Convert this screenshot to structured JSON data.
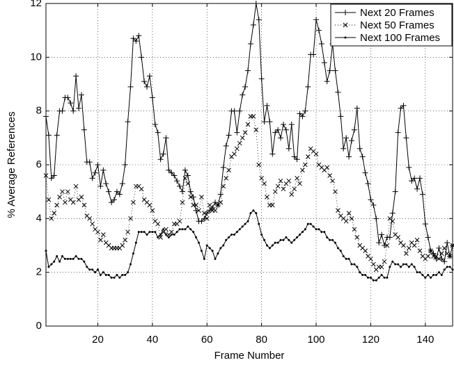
{
  "chart_data": {
    "type": "line",
    "xlabel": "Frame Number",
    "ylabel": "% Average References",
    "x": [
      1,
      2,
      3,
      4,
      5,
      6,
      7,
      8,
      9,
      10,
      11,
      12,
      13,
      14,
      15,
      16,
      17,
      18,
      19,
      20,
      21,
      22,
      23,
      24,
      25,
      26,
      27,
      28,
      29,
      30,
      31,
      32,
      33,
      34,
      35,
      36,
      37,
      38,
      39,
      40,
      41,
      42,
      43,
      44,
      45,
      46,
      47,
      48,
      49,
      50,
      51,
      52,
      53,
      54,
      55,
      56,
      57,
      58,
      59,
      60,
      61,
      62,
      63,
      64,
      65,
      66,
      67,
      68,
      69,
      70,
      71,
      72,
      73,
      74,
      75,
      76,
      77,
      78,
      79,
      80,
      81,
      82,
      83,
      84,
      85,
      86,
      87,
      88,
      89,
      90,
      91,
      92,
      93,
      94,
      95,
      96,
      97,
      98,
      99,
      100,
      101,
      102,
      103,
      104,
      105,
      106,
      107,
      108,
      109,
      110,
      111,
      112,
      113,
      114,
      115,
      116,
      117,
      118,
      119,
      120,
      121,
      122,
      123,
      124,
      125,
      126,
      127,
      128,
      129,
      130,
      131,
      132,
      133,
      134,
      135,
      136,
      137,
      138,
      139,
      140,
      141,
      142,
      143,
      144,
      145,
      146,
      147,
      148,
      149,
      150
    ],
    "series": [
      {
        "name": "Next 20 Frames",
        "color": "#000000",
        "marker": "plus",
        "linestyle": "solid",
        "values": [
          7.8,
          7.1,
          5.5,
          5.6,
          7.1,
          8.0,
          8.0,
          8.5,
          8.5,
          8.3,
          8.0,
          9.3,
          8.1,
          8.6,
          7.3,
          6.1,
          6.1,
          5.5,
          5.7,
          6.0,
          5.2,
          5.8,
          5.3,
          5.0,
          4.6,
          4.7,
          5.0,
          4.9,
          5.3,
          6.0,
          7.6,
          8.9,
          10.7,
          10.6,
          10.8,
          10.0,
          9.1,
          8.9,
          9.3,
          8.5,
          7.5,
          7.2,
          6.2,
          6.4,
          7.0,
          5.8,
          5.7,
          5.6,
          5.4,
          5.2,
          5.0,
          5.8,
          5.6,
          5.0,
          4.8,
          4.3,
          3.9,
          3.9,
          4.0,
          4.2,
          4.3,
          4.4,
          4.6,
          4.5,
          4.9,
          5.9,
          6.7,
          7.1,
          8.0,
          8.0,
          7.2,
          8.0,
          8.6,
          8.9,
          9.5,
          10.5,
          11.2,
          12.0,
          11.4,
          9.2,
          7.6,
          8.2,
          7.6,
          6.4,
          7.2,
          7.3,
          7.0,
          7.5,
          7.3,
          6.6,
          7.5,
          6.3,
          6.2,
          7.9,
          7.8,
          8.0,
          8.9,
          10.1,
          10.1,
          11.4,
          11.0,
          10.5,
          9.8,
          9.1,
          9.5,
          10.5,
          9.5,
          8.7,
          7.8,
          6.6,
          7.0,
          6.3,
          6.9,
          7.3,
          8.1,
          6.6,
          6.3,
          5.7,
          5.3,
          4.7,
          4.5,
          4.0,
          3.1,
          3.4,
          3.0,
          3.3,
          3.3,
          4.2,
          5.0,
          7.2,
          8.1,
          8.2,
          7.0,
          5.9,
          5.4,
          5.5,
          5.1,
          5.5,
          4.9,
          3.8,
          3.3,
          2.8,
          2.7,
          2.5,
          2.9,
          2.5,
          2.4,
          3.1,
          2.6,
          3.0
        ]
      },
      {
        "name": "Next 50 Frames",
        "color": "#000000",
        "marker": "cross",
        "linestyle": "dotted",
        "values": [
          5.6,
          4.7,
          4.0,
          4.2,
          4.5,
          4.8,
          5.0,
          4.6,
          5.0,
          4.7,
          4.6,
          5.2,
          4.7,
          4.8,
          4.5,
          4.1,
          4.0,
          3.8,
          3.6,
          3.5,
          3.2,
          3.4,
          3.1,
          3.0,
          2.9,
          2.9,
          2.9,
          2.9,
          3.0,
          3.2,
          3.5,
          4.0,
          4.6,
          5.2,
          5.2,
          5.1,
          4.7,
          4.6,
          4.5,
          4.3,
          3.9,
          3.8,
          3.3,
          3.5,
          3.6,
          3.4,
          3.5,
          3.8,
          3.8,
          3.9,
          4.6,
          5.5,
          5.3,
          4.8,
          4.5,
          4.5,
          4.3,
          4.8,
          4.2,
          4.0,
          4.5,
          4.3,
          4.3,
          4.5,
          4.6,
          5.2,
          5.5,
          5.8,
          6.3,
          6.4,
          6.6,
          6.8,
          7.0,
          7.2,
          7.5,
          7.8,
          7.8,
          7.3,
          6.0,
          5.5,
          5.3,
          4.8,
          4.5,
          4.5,
          5.0,
          5.2,
          5.4,
          5.1,
          5.3,
          5.4,
          4.9,
          5.1,
          5.5,
          5.3,
          5.8,
          6.0,
          6.3,
          6.6,
          6.5,
          6.4,
          6.0,
          5.9,
          5.8,
          5.9,
          5.6,
          5.4,
          5.0,
          4.3,
          4.1,
          4.0,
          3.9,
          4.2,
          4.0,
          3.6,
          3.3,
          3.0,
          2.9,
          2.8,
          2.6,
          2.5,
          2.3,
          2.1,
          2.2,
          2.2,
          2.4,
          3.0,
          4.0,
          3.9,
          3.4,
          3.3,
          3.1,
          3.0,
          2.7,
          2.9,
          3.1,
          3.0,
          3.2,
          2.8,
          2.6,
          2.5,
          2.6,
          2.8,
          2.6,
          2.6,
          2.5,
          2.7,
          2.9,
          2.7,
          2.6,
          3.0
        ]
      },
      {
        "name": "Next 100 Frames",
        "color": "#000000",
        "marker": "dot",
        "linestyle": "solid",
        "values": [
          2.8,
          2.2,
          2.3,
          2.4,
          2.6,
          2.4,
          2.6,
          2.5,
          2.5,
          2.5,
          2.5,
          2.6,
          2.5,
          2.5,
          2.4,
          2.2,
          2.1,
          2.1,
          2.0,
          2.1,
          1.9,
          2.0,
          1.9,
          1.9,
          1.8,
          1.8,
          1.9,
          1.8,
          1.9,
          1.9,
          2.0,
          2.3,
          2.7,
          3.1,
          3.5,
          3.5,
          3.5,
          3.4,
          3.5,
          3.5,
          3.5,
          3.3,
          3.4,
          3.6,
          3.4,
          3.3,
          3.4,
          3.4,
          3.5,
          3.6,
          3.6,
          3.6,
          3.7,
          3.6,
          3.5,
          3.3,
          3.1,
          2.8,
          2.5,
          3.0,
          2.9,
          2.8,
          2.5,
          2.7,
          2.9,
          3.0,
          3.2,
          3.3,
          3.4,
          3.4,
          3.5,
          3.6,
          3.7,
          3.8,
          3.9,
          4.2,
          4.3,
          4.2,
          3.8,
          3.4,
          3.2,
          3.0,
          2.9,
          3.0,
          3.1,
          3.1,
          3.2,
          3.2,
          3.3,
          3.2,
          3.1,
          3.2,
          3.3,
          3.4,
          3.5,
          3.6,
          3.8,
          3.8,
          3.7,
          3.6,
          3.6,
          3.5,
          3.5,
          3.3,
          3.2,
          3.2,
          3.1,
          2.9,
          2.8,
          2.6,
          2.5,
          2.5,
          2.3,
          2.3,
          2.2,
          2.0,
          1.9,
          1.9,
          1.8,
          1.8,
          1.7,
          1.7,
          1.8,
          1.9,
          1.8,
          1.8,
          2.2,
          2.4,
          2.3,
          2.3,
          2.2,
          2.3,
          2.3,
          2.2,
          2.3,
          2.2,
          2.0,
          2.0,
          1.9,
          1.8,
          1.9,
          1.8,
          1.9,
          1.9,
          2.0,
          1.9,
          2.1,
          2.2,
          2.2,
          2.1
        ]
      }
    ],
    "xlim": [
      1,
      150
    ],
    "xticks": [
      20,
      40,
      60,
      80,
      100,
      120,
      140
    ],
    "ylim": [
      0,
      12
    ],
    "yticks": [
      0,
      2,
      4,
      6,
      8,
      10,
      12
    ],
    "grid": true,
    "legend": "upper right"
  }
}
